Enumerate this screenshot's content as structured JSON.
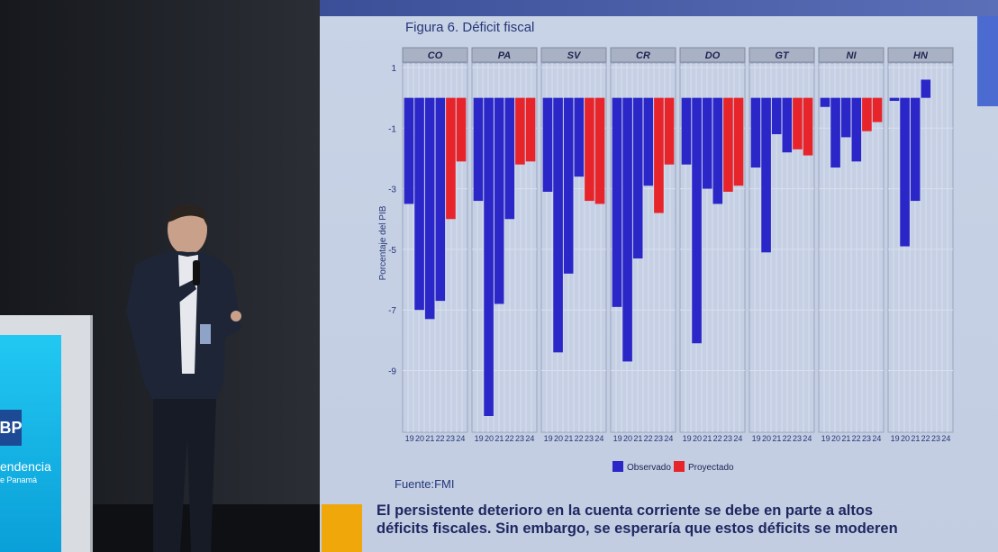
{
  "slide": {
    "title": "Figura 6. Déficit fiscal",
    "source": "Fuente:FMI",
    "body_line1": "El persistente deterioro en la cuenta corriente se debe en parte a altos",
    "body_line2": "déficits fiscales. Sin embargo, se esperaría que estos déficits se moderen"
  },
  "podium": {
    "logo_text": "BP",
    "line1": "endencia",
    "line2": "e Panamá"
  },
  "colors": {
    "observed": "#2a26c8",
    "projected": "#e8242b"
  },
  "chart_data": {
    "type": "bar",
    "title": "Figura 6. Déficit fiscal",
    "ylabel": "Porcentaje del PIB",
    "ylim": [
      -10.5,
      1
    ],
    "yticks": [
      "1",
      "-1",
      "-3",
      "-5",
      "-7",
      "-9"
    ],
    "ytick_values": [
      1,
      -1,
      -3,
      -5,
      -7,
      -9
    ],
    "x_ticks": [
      "19",
      "20",
      "21",
      "22",
      "23",
      "24"
    ],
    "legend": [
      "Observado",
      "Proyectado"
    ],
    "legend_position": "bottom",
    "panels": [
      {
        "name": "CO",
        "values": [
          -3.5,
          -7.0,
          -7.3,
          -6.7,
          -4.0,
          -2.1
        ],
        "projected": [
          false,
          false,
          false,
          false,
          true,
          true
        ]
      },
      {
        "name": "PA",
        "values": [
          -3.4,
          -10.5,
          -6.8,
          -4.0,
          -2.2,
          -2.1
        ],
        "projected": [
          false,
          false,
          false,
          false,
          true,
          true
        ]
      },
      {
        "name": "SV",
        "values": [
          -3.1,
          -8.4,
          -5.8,
          -2.6,
          -3.4,
          -3.5
        ],
        "projected": [
          false,
          false,
          false,
          false,
          true,
          true
        ]
      },
      {
        "name": "CR",
        "values": [
          -6.9,
          -8.7,
          -5.3,
          -2.9,
          -3.8,
          -2.2
        ],
        "projected": [
          false,
          false,
          false,
          false,
          true,
          true
        ]
      },
      {
        "name": "DO",
        "values": [
          -2.2,
          -8.1,
          -3.0,
          -3.5,
          -3.1,
          -2.9
        ],
        "projected": [
          false,
          false,
          false,
          false,
          true,
          true
        ]
      },
      {
        "name": "GT",
        "values": [
          -2.3,
          -5.1,
          -1.2,
          -1.8,
          -1.7,
          -1.9
        ],
        "projected": [
          false,
          false,
          false,
          false,
          true,
          true
        ]
      },
      {
        "name": "NI",
        "values": [
          -0.3,
          -2.3,
          -1.3,
          -2.1,
          -1.1,
          -0.8
        ],
        "projected": [
          false,
          false,
          false,
          false,
          true,
          true
        ]
      },
      {
        "name": "HN",
        "values": [
          -0.1,
          -4.9,
          -3.4,
          0.6,
          0,
          0
        ],
        "projected": [
          false,
          false,
          false,
          false,
          false,
          false
        ]
      }
    ]
  }
}
